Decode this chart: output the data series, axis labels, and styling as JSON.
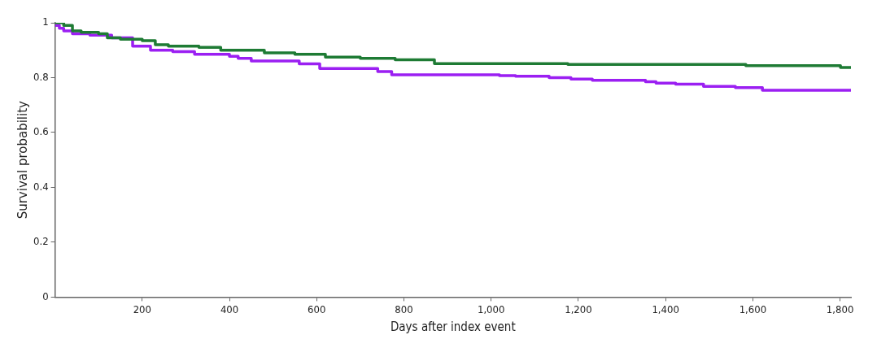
{
  "chart_data": {
    "type": "step",
    "xlabel": "Days after index event",
    "ylabel": "Survival probability",
    "xlim": [
      0,
      1825
    ],
    "ylim": [
      0,
      1
    ],
    "xticks": [
      200,
      400,
      600,
      800,
      {
        "value": 1000,
        "label": "1,000"
      },
      {
        "value": 1200,
        "label": "1,200"
      },
      {
        "value": 1400,
        "label": "1,400"
      },
      {
        "value": 1600,
        "label": "1,600"
      },
      {
        "value": 1800,
        "label": "1,800"
      }
    ],
    "yticks": [
      0,
      0.2,
      0.4,
      0.6,
      0.8,
      1
    ],
    "legend": false,
    "series": [
      {
        "color": "#1e7b34",
        "x": [
          0,
          20,
          40,
          60,
          100,
          120,
          150,
          200,
          230,
          260,
          330,
          380,
          480,
          550,
          620,
          700,
          780,
          870,
          1176,
          1584,
          1801,
          1825
        ],
        "values": [
          1.0,
          0.99,
          0.97,
          0.965,
          0.96,
          0.945,
          0.94,
          0.935,
          0.92,
          0.915,
          0.91,
          0.9,
          0.89,
          0.885,
          0.875,
          0.87,
          0.865,
          0.851,
          0.848,
          0.844,
          0.837,
          0.837
        ]
      },
      {
        "color": "#9b1ff2",
        "x": [
          0,
          10,
          20,
          40,
          80,
          130,
          178,
          219,
          270,
          320,
          400,
          420,
          450,
          560,
          607,
          740,
          772,
          1019,
          1056,
          1133,
          1183,
          1232,
          1354,
          1378,
          1423,
          1487,
          1560,
          1622,
          1825
        ],
        "values": [
          0.99,
          0.98,
          0.97,
          0.96,
          0.955,
          0.945,
          0.915,
          0.9,
          0.895,
          0.885,
          0.878,
          0.87,
          0.861,
          0.85,
          0.833,
          0.822,
          0.81,
          0.807,
          0.805,
          0.8,
          0.795,
          0.79,
          0.785,
          0.78,
          0.776,
          0.768,
          0.764,
          0.754,
          0.754
        ]
      }
    ]
  }
}
